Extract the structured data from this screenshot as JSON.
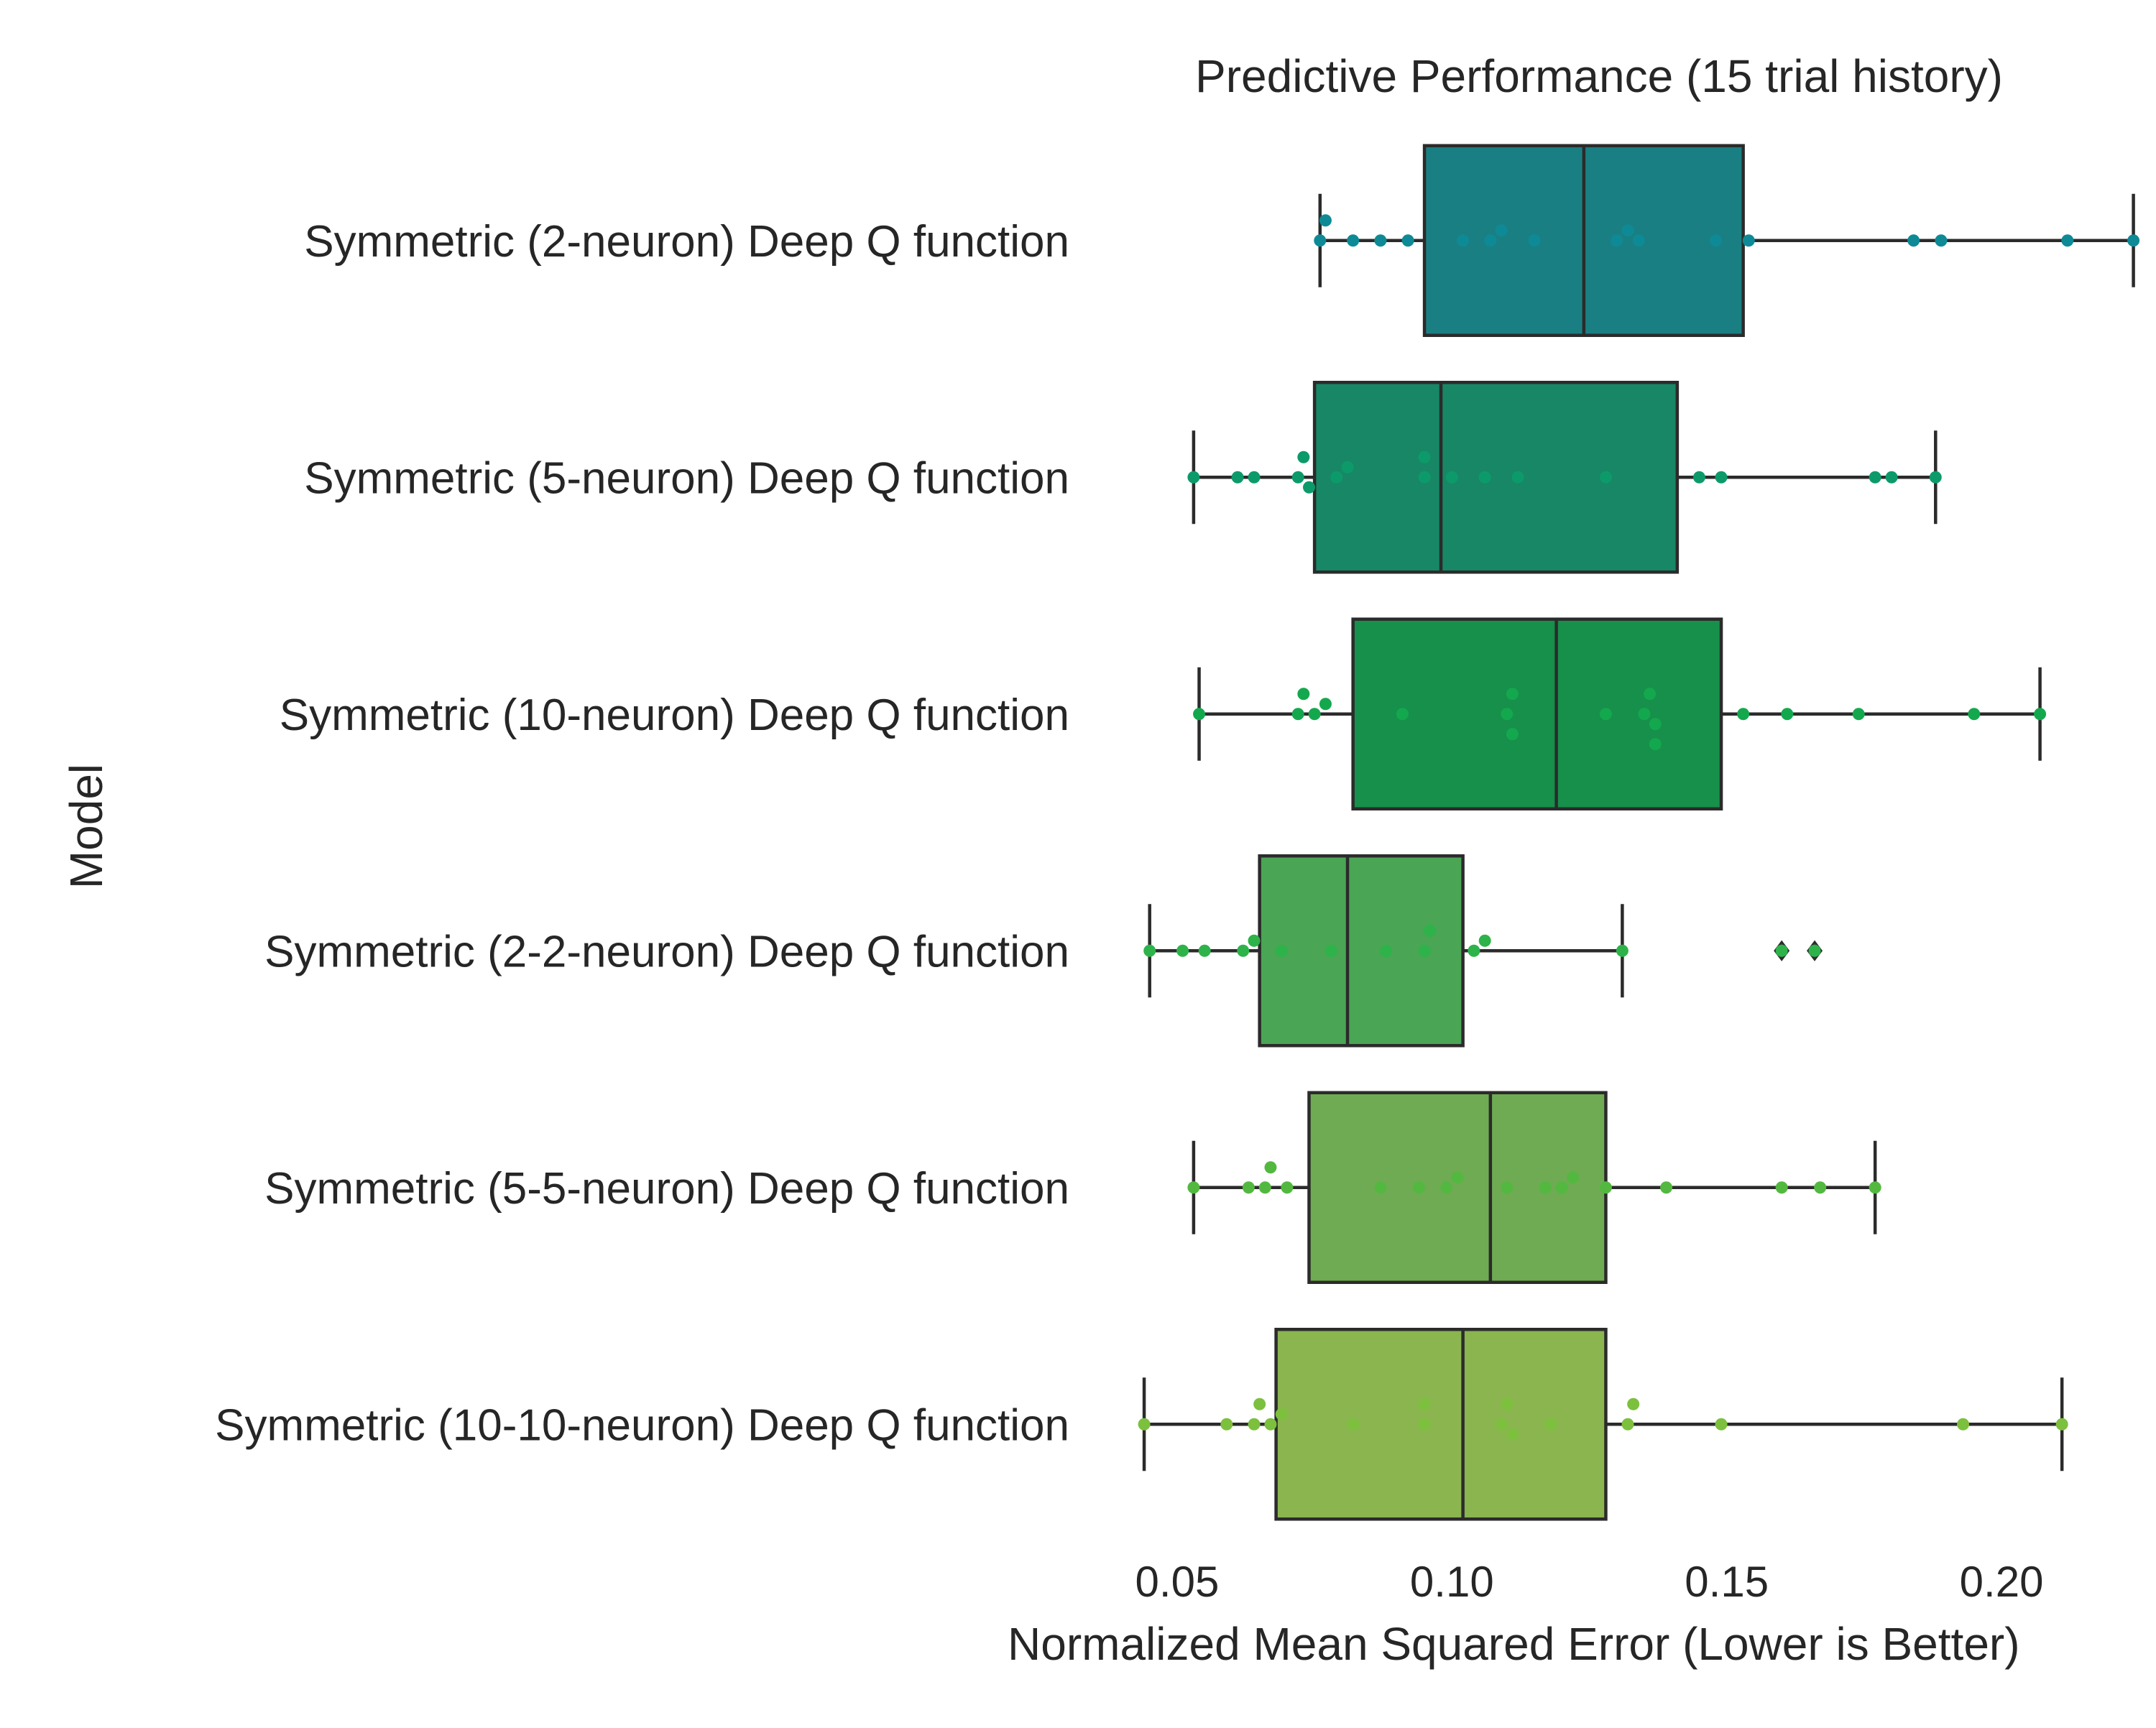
{
  "chart_data": {
    "type": "box",
    "title": "Predictive Performance (15 trial history)",
    "xlabel": "Normalized Mean Squared Error (Lower is Better)",
    "ylabel": "Model",
    "xlim": [
      0.0385,
      0.2268
    ],
    "xticks": [
      0.05,
      0.1,
      0.15,
      0.2
    ],
    "xtick_labels": [
      "0.05",
      "0.10",
      "0.15",
      "0.20"
    ],
    "grid": false,
    "categories": [
      {
        "label": "Symmetric (2-neuron) Deep Q function",
        "color": "#1a7f82",
        "point_color": "#0e8a96",
        "q1": 0.095,
        "median": 0.124,
        "q3": 0.153,
        "whisker_low": 0.076,
        "whisker_high": 0.224,
        "outliers": [],
        "points": [
          0.076,
          0.077,
          0.082,
          0.087,
          0.092,
          0.102,
          0.107,
          0.109,
          0.115,
          0.13,
          0.132,
          0.134,
          0.148,
          0.154,
          0.184,
          0.189,
          0.212,
          0.224
        ]
      },
      {
        "label": "Symmetric (5-neuron) Deep Q function",
        "color": "#178765",
        "point_color": "#0d9a6a",
        "q1": 0.075,
        "median": 0.098,
        "q3": 0.141,
        "whisker_low": 0.053,
        "whisker_high": 0.188,
        "outliers": [],
        "points": [
          0.053,
          0.061,
          0.064,
          0.072,
          0.073,
          0.074,
          0.079,
          0.081,
          0.095,
          0.095,
          0.1,
          0.106,
          0.112,
          0.128,
          0.145,
          0.149,
          0.177,
          0.18,
          0.188
        ]
      },
      {
        "label": "Symmetric (10-neuron) Deep Q function",
        "color": "#16904a",
        "point_color": "#14a84e",
        "q1": 0.082,
        "median": 0.119,
        "q3": 0.149,
        "whisker_low": 0.054,
        "whisker_high": 0.207,
        "outliers": [],
        "points": [
          0.054,
          0.072,
          0.073,
          0.075,
          0.077,
          0.091,
          0.11,
          0.111,
          0.111,
          0.128,
          0.135,
          0.136,
          0.137,
          0.137,
          0.153,
          0.161,
          0.174,
          0.195,
          0.207
        ]
      },
      {
        "label": "Symmetric (2-2-neuron) Deep Q function",
        "color": "#4aa554",
        "point_color": "#2db34a",
        "q1": 0.065,
        "median": 0.081,
        "q3": 0.102,
        "whisker_low": 0.045,
        "whisker_high": 0.131,
        "outliers": [
          0.16,
          0.166
        ],
        "points": [
          0.045,
          0.051,
          0.055,
          0.062,
          0.064,
          0.069,
          0.078,
          0.088,
          0.095,
          0.096,
          0.104,
          0.106,
          0.131,
          0.16,
          0.166
        ]
      },
      {
        "label": "Symmetric (5-5-neuron) Deep Q function",
        "color": "#6fab52",
        "point_color": "#53b840",
        "q1": 0.074,
        "median": 0.107,
        "q3": 0.128,
        "whisker_low": 0.053,
        "whisker_high": 0.177,
        "outliers": [],
        "points": [
          0.053,
          0.063,
          0.066,
          0.067,
          0.07,
          0.087,
          0.094,
          0.099,
          0.101,
          0.11,
          0.117,
          0.12,
          0.122,
          0.128,
          0.139,
          0.16,
          0.167,
          0.177
        ]
      },
      {
        "label": "Symmetric (10-10-neuron) Deep Q function",
        "color": "#8ab54f",
        "point_color": "#7cc03e",
        "q1": 0.068,
        "median": 0.102,
        "q3": 0.128,
        "whisker_low": 0.044,
        "whisker_high": 0.211,
        "outliers": [],
        "points": [
          0.044,
          0.059,
          0.064,
          0.065,
          0.067,
          0.069,
          0.082,
          0.095,
          0.095,
          0.109,
          0.11,
          0.111,
          0.118,
          0.132,
          0.133,
          0.149,
          0.193,
          0.211
        ]
      }
    ]
  }
}
